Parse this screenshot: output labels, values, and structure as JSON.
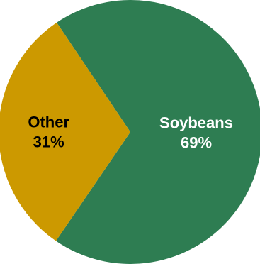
{
  "chart_data": {
    "type": "pie",
    "slices": [
      {
        "label": "Soybeans",
        "value": 69,
        "value_label": "69%",
        "color": "#2e7d52",
        "label_color": "#ffffff"
      },
      {
        "label": "Other",
        "value": 31,
        "value_label": "31%",
        "color": "#cc9900",
        "label_color": "#000000"
      }
    ],
    "legend": "none"
  }
}
